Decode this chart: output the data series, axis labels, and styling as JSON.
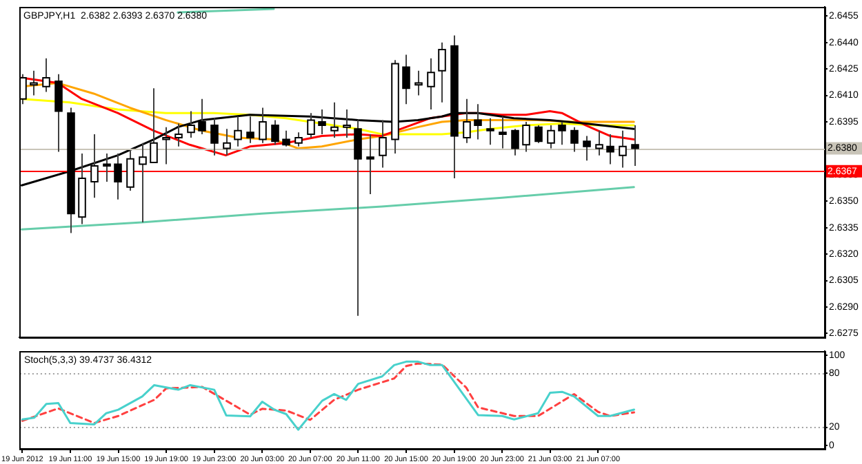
{
  "chart_data": [
    {
      "type": "candlestick",
      "title": "GBPJPY,H1  2.6382 2.6393 2.6370 2.6380",
      "x": [
        "2012-06-19T07:00",
        "2012-06-19T08:00",
        "2012-06-19T09:00",
        "2012-06-19T10:00",
        "2012-06-19T11:00",
        "2012-06-19T12:00",
        "2012-06-19T13:00",
        "2012-06-19T14:00",
        "2012-06-19T15:00",
        "2012-06-19T16:00",
        "2012-06-19T17:00",
        "2012-06-19T18:00",
        "2012-06-19T19:00",
        "2012-06-19T20:00",
        "2012-06-19T21:00",
        "2012-06-19T22:00",
        "2012-06-19T23:00",
        "2012-06-20T00:00",
        "2012-06-20T01:00",
        "2012-06-20T02:00",
        "2012-06-20T03:00",
        "2012-06-20T04:00",
        "2012-06-20T05:00",
        "2012-06-20T06:00",
        "2012-06-20T07:00",
        "2012-06-20T08:00",
        "2012-06-20T09:00",
        "2012-06-20T10:00",
        "2012-06-20T11:00",
        "2012-06-20T12:00",
        "2012-06-20T13:00",
        "2012-06-20T14:00",
        "2012-06-20T15:00",
        "2012-06-20T16:00",
        "2012-06-20T17:00",
        "2012-06-20T18:00",
        "2012-06-20T19:00",
        "2012-06-20T20:00",
        "2012-06-20T21:00",
        "2012-06-20T22:00",
        "2012-06-20T23:00",
        "2012-06-21T00:00",
        "2012-06-21T01:00",
        "2012-06-21T02:00",
        "2012-06-21T03:00",
        "2012-06-21T04:00",
        "2012-06-21T05:00",
        "2012-06-21T06:00",
        "2012-06-21T07:00",
        "2012-06-21T08:00",
        "2012-06-21T09:00",
        "2012-06-21T10:00"
      ],
      "ohlc": [
        [
          2.6408,
          2.6422,
          2.6405,
          2.642
        ],
        [
          2.6416,
          2.6424,
          2.641,
          2.6417
        ],
        [
          2.6415,
          2.6431,
          2.6412,
          2.642
        ],
        [
          2.6418,
          2.6422,
          2.6378,
          2.6401
        ],
        [
          2.64,
          2.6403,
          2.6332,
          2.6343
        ],
        [
          2.6341,
          2.6377,
          2.6337,
          2.6363
        ],
        [
          2.6361,
          2.6388,
          2.6352,
          2.637
        ],
        [
          2.6371,
          2.6377,
          2.6361,
          2.637
        ],
        [
          2.6371,
          2.6377,
          2.6351,
          2.6361
        ],
        [
          2.6358,
          2.6379,
          2.6356,
          2.6374
        ],
        [
          2.6371,
          2.6383,
          2.6338,
          2.6375
        ],
        [
          2.6372,
          2.6414,
          2.6372,
          2.6383
        ],
        [
          2.6385,
          2.6392,
          2.6371,
          2.6386
        ],
        [
          2.6386,
          2.6394,
          2.6381,
          2.6388
        ],
        [
          2.6389,
          2.6401,
          2.6386,
          2.6393
        ],
        [
          2.6395,
          2.6408,
          2.6388,
          2.639
        ],
        [
          2.6393,
          2.6397,
          2.6376,
          2.6383
        ],
        [
          2.638,
          2.6391,
          2.6376,
          2.6383
        ],
        [
          2.6385,
          2.6398,
          2.6381,
          2.639
        ],
        [
          2.6389,
          2.6398,
          2.6383,
          2.6386
        ],
        [
          2.6385,
          2.6403,
          2.6383,
          2.6395
        ],
        [
          2.6393,
          2.6396,
          2.6382,
          2.6384
        ],
        [
          2.6385,
          2.639,
          2.6381,
          2.6382
        ],
        [
          2.6383,
          2.6389,
          2.6381,
          2.6386
        ],
        [
          2.6388,
          2.64,
          2.6386,
          2.6396
        ],
        [
          2.6395,
          2.6402,
          2.6388,
          2.6393
        ],
        [
          2.639,
          2.6406,
          2.6386,
          2.6392
        ],
        [
          2.6392,
          2.6402,
          2.6386,
          2.6393
        ],
        [
          2.6391,
          2.6396,
          2.6285,
          2.6374
        ],
        [
          2.6375,
          2.6388,
          2.6354,
          2.6374
        ],
        [
          2.6376,
          2.6396,
          2.6369,
          2.6386
        ],
        [
          2.6385,
          2.643,
          2.6377,
          2.6428
        ],
        [
          2.6426,
          2.6433,
          2.6405,
          2.6414
        ],
        [
          2.6416,
          2.6424,
          2.641,
          2.6417
        ],
        [
          2.6415,
          2.6431,
          2.6402,
          2.6423
        ],
        [
          2.6424,
          2.644,
          2.6406,
          2.6436
        ],
        [
          2.6438,
          2.6444,
          2.6363,
          2.6387
        ],
        [
          2.6386,
          2.6408,
          2.6383,
          2.6395
        ],
        [
          2.6396,
          2.6405,
          2.6385,
          2.6393
        ],
        [
          2.6391,
          2.6397,
          2.6382,
          2.639
        ],
        [
          2.6389,
          2.6398,
          2.638,
          2.6388
        ],
        [
          2.639,
          2.6391,
          2.6376,
          2.638
        ],
        [
          2.6382,
          2.6395,
          2.6378,
          2.6393
        ],
        [
          2.6392,
          2.6393,
          2.6383,
          2.6384
        ],
        [
          2.6383,
          2.6393,
          2.638,
          2.639
        ],
        [
          2.6393,
          2.6395,
          2.6382,
          2.639
        ],
        [
          2.639,
          2.6392,
          2.6378,
          2.6383
        ],
        [
          2.6384,
          2.6387,
          2.6373,
          2.6381
        ],
        [
          2.638,
          2.639,
          2.6376,
          2.6382
        ],
        [
          2.6381,
          2.6388,
          2.6371,
          2.6378
        ],
        [
          2.6376,
          2.639,
          2.6369,
          2.6381
        ],
        [
          2.6382,
          2.6393,
          2.637,
          2.638
        ]
      ],
      "series": [
        {
          "type": "line",
          "color": "#000000",
          "x": [
            "2012-06-19T07:00",
            "2012-06-19T11:00",
            "2012-06-19T15:00",
            "2012-06-19T18:00",
            "2012-06-19T20:00",
            "2012-06-19T22:00",
            "2012-06-20T02:00",
            "2012-06-20T07:00",
            "2012-06-20T11:00",
            "2012-06-20T14:00",
            "2012-06-20T16:00",
            "2012-06-20T18:00",
            "2012-06-20T19:00",
            "2012-06-20T21:00",
            "2012-06-21T00:00",
            "2012-06-21T03:00",
            "2012-06-21T06:00",
            "2012-06-21T10:00"
          ],
          "values": [
            2.6359,
            2.6367,
            2.6376,
            2.6385,
            2.6392,
            2.6396,
            2.6399,
            2.6398,
            2.6396,
            2.6395,
            2.6396,
            2.6398,
            2.64,
            2.64,
            2.6397,
            2.6396,
            2.6394,
            2.6391
          ]
        },
        {
          "type": "line",
          "color": "#ff0000",
          "x": [
            "2012-06-19T07:00",
            "2012-06-19T10:00",
            "2012-06-19T12:00",
            "2012-06-19T15:00",
            "2012-06-19T18:00",
            "2012-06-19T21:00",
            "2012-06-20T00:00",
            "2012-06-20T02:00",
            "2012-06-20T05:00",
            "2012-06-20T08:00",
            "2012-06-20T11:00",
            "2012-06-20T13:00",
            "2012-06-20T15:00",
            "2012-06-20T17:00",
            "2012-06-20T20:00",
            "2012-06-20T21:00",
            "2012-06-20T23:00",
            "2012-06-21T01:00",
            "2012-06-21T03:00",
            "2012-06-21T04:00",
            "2012-06-21T06:00",
            "2012-06-21T08:00",
            "2012-06-21T10:00"
          ],
          "values": [
            2.642,
            2.6417,
            2.6408,
            2.64,
            2.639,
            2.6382,
            2.6376,
            2.6381,
            2.6383,
            2.6387,
            2.6388,
            2.6387,
            2.6392,
            2.6397,
            2.64,
            2.64,
            2.6399,
            2.6399,
            2.6401,
            2.64,
            2.6393,
            2.6387,
            2.6385
          ]
        },
        {
          "type": "line",
          "color": "#ffa500",
          "x": [
            "2012-06-19T07:00",
            "2012-06-19T10:00",
            "2012-06-19T13:00",
            "2012-06-19T16:00",
            "2012-06-19T19:00",
            "2012-06-19T22:00",
            "2012-06-20T01:00",
            "2012-06-20T04:00",
            "2012-06-20T06:00",
            "2012-06-20T08:00",
            "2012-06-20T11:00",
            "2012-06-20T13:00",
            "2012-06-20T16:00",
            "2012-06-20T18:00",
            "2012-06-20T20:00",
            "2012-06-20T23:00",
            "2012-06-21T02:00",
            "2012-06-21T05:00",
            "2012-06-21T08:00",
            "2012-06-21T10:00"
          ],
          "values": [
            2.6415,
            2.6417,
            2.6411,
            2.6403,
            2.6396,
            2.639,
            2.6386,
            2.6385,
            2.638,
            2.6381,
            2.6385,
            2.6387,
            2.6392,
            2.6395,
            2.6396,
            2.6396,
            2.6396,
            2.6395,
            2.6395,
            2.6395
          ]
        },
        {
          "type": "line",
          "color": "#ffff00",
          "x": [
            "2012-06-19T07:00",
            "2012-06-19T11:00",
            "2012-06-19T15:00",
            "2012-06-19T19:00",
            "2012-06-19T23:00",
            "2012-06-20T02:00",
            "2012-06-20T05:00",
            "2012-06-20T08:00",
            "2012-06-20T11:00",
            "2012-06-20T13:00",
            "2012-06-20T15:00",
            "2012-06-20T18:00",
            "2012-06-20T20:00",
            "2012-06-20T22:00",
            "2012-06-21T01:00",
            "2012-06-21T04:00",
            "2012-06-21T07:00",
            "2012-06-21T10:00"
          ],
          "values": [
            2.6408,
            2.6406,
            2.6402,
            2.64,
            2.64,
            2.6399,
            2.6397,
            2.6394,
            2.6391,
            2.6388,
            2.6388,
            2.6388,
            2.6389,
            2.6391,
            2.6393,
            2.6394,
            2.6393,
            2.6393
          ]
        },
        {
          "type": "line",
          "color": "#66cdaa",
          "x": [
            "2012-06-19T07:00",
            "2012-06-19T17:00",
            "2012-06-20T03:00",
            "2012-06-20T13:00",
            "2012-06-20T23:00",
            "2012-06-21T10:00"
          ],
          "values": [
            2.6334,
            2.6338,
            2.6343,
            2.6347,
            2.6352,
            2.6358
          ]
        },
        {
          "type": "line",
          "color": "#66cdaa",
          "x": [
            "2012-06-19T20:00",
            "2012-06-20T00:00",
            "2012-06-20T04:00"
          ],
          "values": [
            2.6457,
            2.6458,
            2.6459
          ]
        }
      ],
      "xlim": [
        "2012-06-19T06:48",
        "2012-06-22T01:54"
      ],
      "ylim": [
        2.6273,
        2.646
      ],
      "yticks": [
        2.6455,
        {
          "value": 2.644,
          "label": "2.6440"
        },
        2.6425,
        {
          "value": 2.641,
          "label": "2.6410"
        },
        2.6395,
        {
          "value": 2.638,
          "label": "2.6380"
        },
        2.6365,
        {
          "value": 2.635,
          "label": "2.6350"
        },
        2.6335,
        {
          "value": 2.632,
          "label": "2.6320"
        },
        2.6305,
        {
          "value": 2.629,
          "label": "2.6290"
        },
        2.6275
      ],
      "ref_lines": [
        {
          "axis": "y",
          "value": 2.638,
          "label": "2.6380",
          "color": "#c8c4b8"
        },
        {
          "axis": "y",
          "value": 2.6367,
          "label": "2.6367",
          "color": "#ff0000"
        }
      ],
      "tick_labels": "y",
      "grid": false,
      "legend": false
    },
    {
      "type": "line",
      "title": "Stoch(5,3,3) 39.4737 36.4312",
      "series": [
        {
          "color": "#48d1cc",
          "line_style": "solid",
          "x": [
            "2012-06-19T07:00",
            "2012-06-19T08:00",
            "2012-06-19T09:00",
            "2012-06-19T10:00",
            "2012-06-19T11:00",
            "2012-06-19T13:00",
            "2012-06-19T14:00",
            "2012-06-19T15:00",
            "2012-06-19T17:00",
            "2012-06-19T18:00",
            "2012-06-19T20:00",
            "2012-06-19T21:00",
            "2012-06-19T23:00",
            "2012-06-20T00:00",
            "2012-06-20T02:00",
            "2012-06-20T03:00",
            "2012-06-20T04:00",
            "2012-06-20T05:00",
            "2012-06-20T06:00",
            "2012-06-20T08:00",
            "2012-06-20T09:00",
            "2012-06-20T10:00",
            "2012-06-20T11:00",
            "2012-06-20T13:00",
            "2012-06-20T14:00",
            "2012-06-20T15:00",
            "2012-06-20T16:00",
            "2012-06-20T17:00",
            "2012-06-20T18:00",
            "2012-06-20T21:00",
            "2012-06-20T23:00",
            "2012-06-21T00:00",
            "2012-06-21T02:00",
            "2012-06-21T03:00",
            "2012-06-21T04:00",
            "2012-06-21T05:00",
            "2012-06-21T07:00",
            "2012-06-21T08:00",
            "2012-06-21T10:00"
          ],
          "values": [
            28.6,
            30.5,
            45.8,
            46.8,
            24.6,
            23.1,
            35.5,
            39.4,
            54.1,
            66.6,
            61.5,
            66.6,
            61.5,
            33,
            32,
            48.2,
            39.4,
            34.5,
            17.2,
            49.3,
            56.7,
            50.3,
            68,
            76.3,
            88.8,
            92.6,
            92.6,
            88.8,
            88.8,
            33.4,
            32.4,
            28.6,
            35.5,
            58.1,
            59.2,
            54.1,
            32.4,
            32.4,
            39.4737
          ]
        },
        {
          "color": "#ff4040",
          "line_style": "dashed",
          "x": [
            "2012-06-19T07:00",
            "2012-06-19T10:00",
            "2012-06-19T13:00",
            "2012-06-19T15:00",
            "2012-06-19T18:00",
            "2012-06-19T19:00",
            "2012-06-19T22:00",
            "2012-06-20T00:00",
            "2012-06-20T02:00",
            "2012-06-20T03:00",
            "2012-06-20T05:00",
            "2012-06-20T07:00",
            "2012-06-20T09:00",
            "2012-06-20T11:00",
            "2012-06-20T14:00",
            "2012-06-20T15:00",
            "2012-06-20T16:00",
            "2012-06-20T18:00",
            "2012-06-20T20:00",
            "2012-06-20T21:00",
            "2012-06-21T00:00",
            "2012-06-21T02:00",
            "2012-06-21T05:00",
            "2012-06-21T07:00",
            "2012-06-21T08:00",
            "2012-06-21T10:00"
          ],
          "values": [
            27.1,
            40.8,
            24.6,
            32.4,
            50.3,
            63,
            64.6,
            49.3,
            33.9,
            40.4,
            38.5,
            28.1,
            50.3,
            61.5,
            74,
            87.7,
            90.6,
            89.3,
            64,
            41.9,
            32.4,
            32.4,
            56.7,
            37,
            32.4,
            36.4312
          ]
        }
      ],
      "xlim": [
        "2012-06-19T06:48",
        "2012-06-22T01:54"
      ],
      "xticks": [
        {
          "value": "2012-06-19T07:00",
          "label": "19 Jun 2012"
        },
        {
          "value": "2012-06-19T11:00",
          "label": "19 Jun 11:00"
        },
        {
          "value": "2012-06-19T15:00",
          "label": "19 Jun 15:00"
        },
        {
          "value": "2012-06-19T19:00",
          "label": "19 Jun 19:00"
        },
        {
          "value": "2012-06-19T23:00",
          "label": "19 Jun 23:00"
        },
        {
          "value": "2012-06-20T03:00",
          "label": "20 Jun 03:00"
        },
        {
          "value": "2012-06-20T07:00",
          "label": "20 Jun 07:00"
        },
        {
          "value": "2012-06-20T11:00",
          "label": "20 Jun 11:00"
        },
        {
          "value": "2012-06-20T15:00",
          "label": "20 Jun 15:00"
        },
        {
          "value": "2012-06-20T19:00",
          "label": "20 Jun 19:00"
        },
        {
          "value": "2012-06-20T23:00",
          "label": "20 Jun 23:00"
        },
        {
          "value": "2012-06-21T03:00",
          "label": "21 Jun 03:00"
        },
        {
          "value": "2012-06-21T07:00",
          "label": "21 Jun 07:00"
        }
      ],
      "ylim": [
        -4,
        104
      ],
      "yticks": [
        0,
        20,
        80,
        100
      ],
      "ref_lines": [
        {
          "axis": "y",
          "value": 80,
          "color": "#a0a0a0",
          "line_style": "dotted"
        },
        {
          "axis": "y",
          "value": 20,
          "color": "#a0a0a0",
          "line_style": "dotted"
        }
      ],
      "grid": false,
      "legend": false
    }
  ]
}
